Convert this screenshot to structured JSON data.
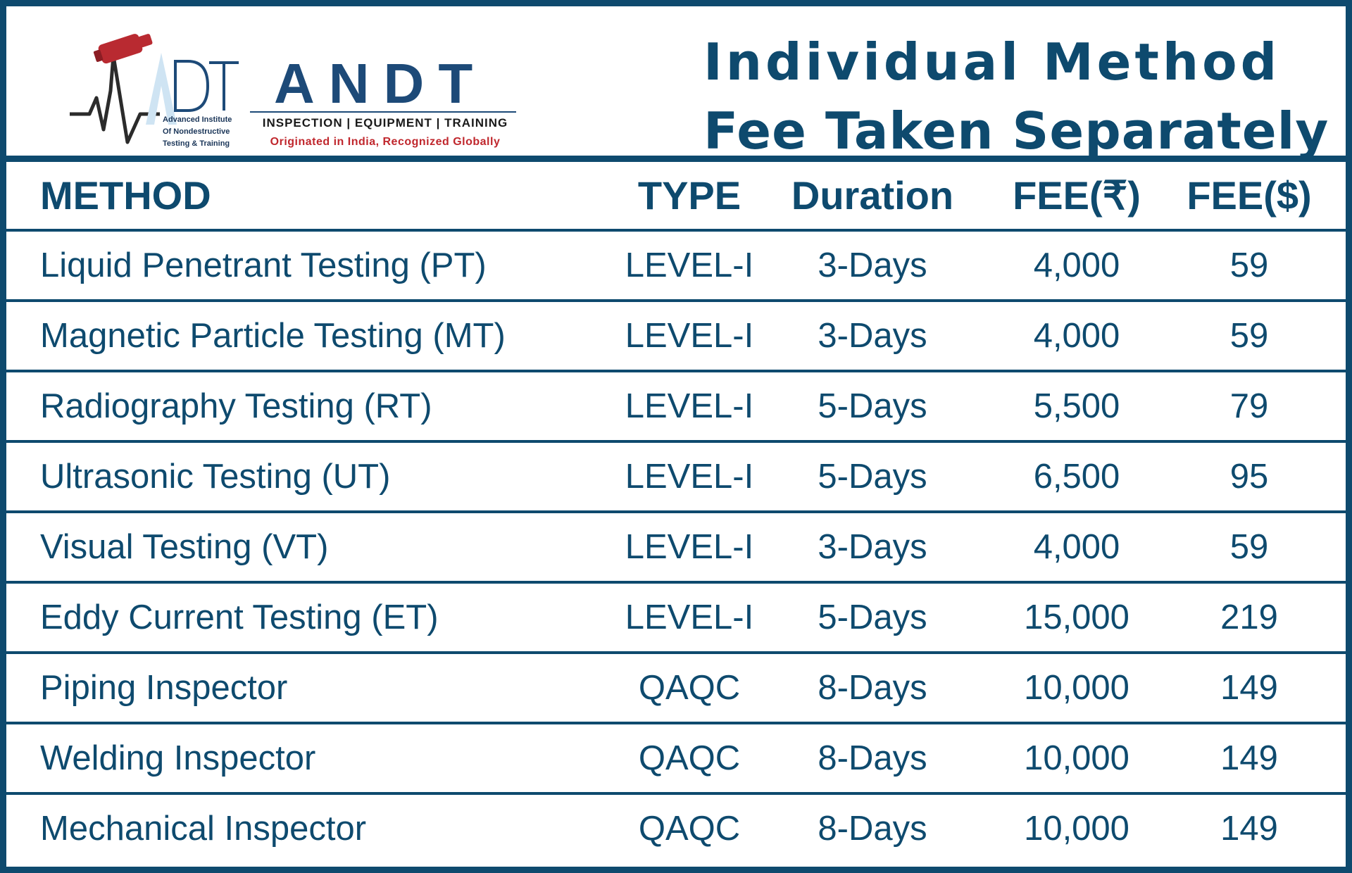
{
  "logo": {
    "brand": "ANDT",
    "institute": "Advanced Institute\nOf Nondestructive\nTesting & Training",
    "tagline": "INSPECTION | EQUIPMENT | TRAINING",
    "slogan": "Originated in India, Recognized Globally",
    "icon": "ndt-logo-icon",
    "colors": {
      "brand": "#1d4a78",
      "accent": "#c0272d"
    }
  },
  "heading": {
    "line1": "Individual Method",
    "line2": "Fee Taken Separately"
  },
  "colors": {
    "primary": "#0e4a6e",
    "background": "#ffffff"
  },
  "table": {
    "columns": [
      "METHOD",
      "TYPE",
      "Duration",
      "FEE(₹)",
      "FEE($)"
    ],
    "rows": [
      [
        "Liquid Penetrant Testing (PT)",
        "LEVEL-I",
        "3-Days",
        "4,000",
        "59"
      ],
      [
        "Magnetic Particle Testing (MT)",
        "LEVEL-I",
        "3-Days",
        "4,000",
        "59"
      ],
      [
        "Radiography Testing (RT)",
        "LEVEL-I",
        "5-Days",
        "5,500",
        "79"
      ],
      [
        "Ultrasonic Testing (UT)",
        "LEVEL-I",
        "5-Days",
        "6,500",
        "95"
      ],
      [
        "Visual Testing (VT)",
        "LEVEL-I",
        "3-Days",
        "4,000",
        "59"
      ],
      [
        "Eddy Current Testing (ET)",
        "LEVEL-I",
        "5-Days",
        "15,000",
        "219"
      ],
      [
        "Piping Inspector",
        "QAQC",
        "8-Days",
        "10,000",
        "149"
      ],
      [
        "Welding Inspector",
        "QAQC",
        "8-Days",
        "10,000",
        "149"
      ],
      [
        "Mechanical Inspector",
        "QAQC",
        "8-Days",
        "10,000",
        "149"
      ]
    ]
  }
}
